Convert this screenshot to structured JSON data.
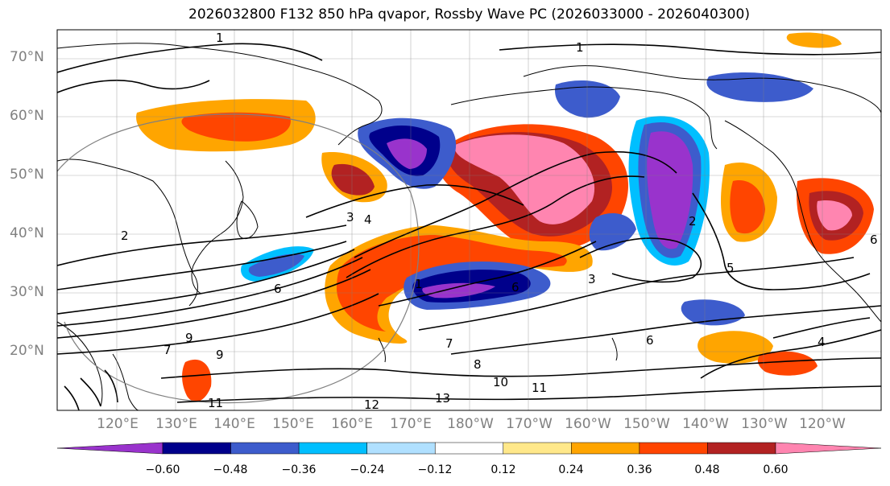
{
  "title": "2026032800 F132 850 hPa qvapor, Rossby Wave PC (2026033000 - 2026040300)",
  "lat_labels": [
    "70°N",
    "60°N",
    "50°N",
    "40°N",
    "30°N",
    "20°N"
  ],
  "lon_labels": [
    "120°E",
    "130°E",
    "140°E",
    "150°E",
    "160°E",
    "170°E",
    "180°W",
    "170°W",
    "160°W",
    "150°W",
    "140°W",
    "130°W",
    "120°W"
  ],
  "colorbar": {
    "tick_labels": [
      "−0.60",
      "−0.48",
      "−0.36",
      "−0.24",
      "−0.12",
      "0.12",
      "0.24",
      "0.36",
      "0.48",
      "0.60"
    ],
    "levels": [
      -0.6,
      -0.48,
      -0.36,
      -0.24,
      -0.12,
      0.12,
      0.24,
      0.36,
      0.48,
      0.6
    ],
    "colors": [
      "#9933cc",
      "#00008b",
      "#3d5ccc",
      "#00bfff",
      "#b0e0ff",
      "#ffffff",
      "#ffe88a",
      "#ffa500",
      "#ff4500",
      "#b22222",
      "#ff85b0"
    ]
  },
  "contour_labels": [
    "1",
    "1",
    "1",
    "2",
    "2",
    "3",
    "3",
    "4",
    "4",
    "5",
    "6",
    "6",
    "6",
    "6",
    "7",
    "7",
    "8",
    "9",
    "9",
    "10",
    "11",
    "11",
    "12",
    "13"
  ],
  "map_extent": {
    "lon_min": 110,
    "lon_max": 250,
    "lat_min": 10,
    "lat_max": 75
  },
  "colors": {
    "land_outline": "#000000",
    "grid": "#808080",
    "tick_text": "#808080"
  }
}
